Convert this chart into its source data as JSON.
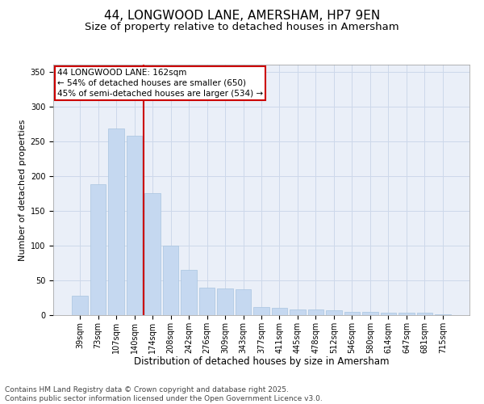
{
  "title": "44, LONGWOOD LANE, AMERSHAM, HP7 9EN",
  "subtitle": "Size of property relative to detached houses in Amersham",
  "xlabel": "Distribution of detached houses by size in Amersham",
  "ylabel": "Number of detached properties",
  "categories": [
    "39sqm",
    "73sqm",
    "107sqm",
    "140sqm",
    "174sqm",
    "208sqm",
    "242sqm",
    "276sqm",
    "309sqm",
    "343sqm",
    "377sqm",
    "411sqm",
    "445sqm",
    "478sqm",
    "512sqm",
    "546sqm",
    "580sqm",
    "614sqm",
    "647sqm",
    "681sqm",
    "715sqm"
  ],
  "values": [
    28,
    188,
    268,
    258,
    175,
    100,
    65,
    40,
    38,
    37,
    12,
    10,
    8,
    8,
    7,
    5,
    5,
    4,
    4,
    3,
    1
  ],
  "bar_color": "#c5d8f0",
  "bar_edge_color": "#a8c4e0",
  "grid_color": "#cdd8ea",
  "background_color": "#eaeff8",
  "vline_color": "#cc0000",
  "annotation_box_color": "#cc0000",
  "annotation_title": "44 LONGWOOD LANE: 162sqm",
  "annotation_line1": "← 54% of detached houses are smaller (650)",
  "annotation_line2": "45% of semi-detached houses are larger (534) →",
  "footer_line1": "Contains HM Land Registry data © Crown copyright and database right 2025.",
  "footer_line2": "Contains public sector information licensed under the Open Government Licence v3.0.",
  "ylim": [
    0,
    360
  ],
  "title_fontsize": 11,
  "subtitle_fontsize": 9.5,
  "xlabel_fontsize": 8.5,
  "ylabel_fontsize": 8,
  "tick_fontsize": 7,
  "annotation_fontsize": 7.5,
  "footer_fontsize": 6.5
}
